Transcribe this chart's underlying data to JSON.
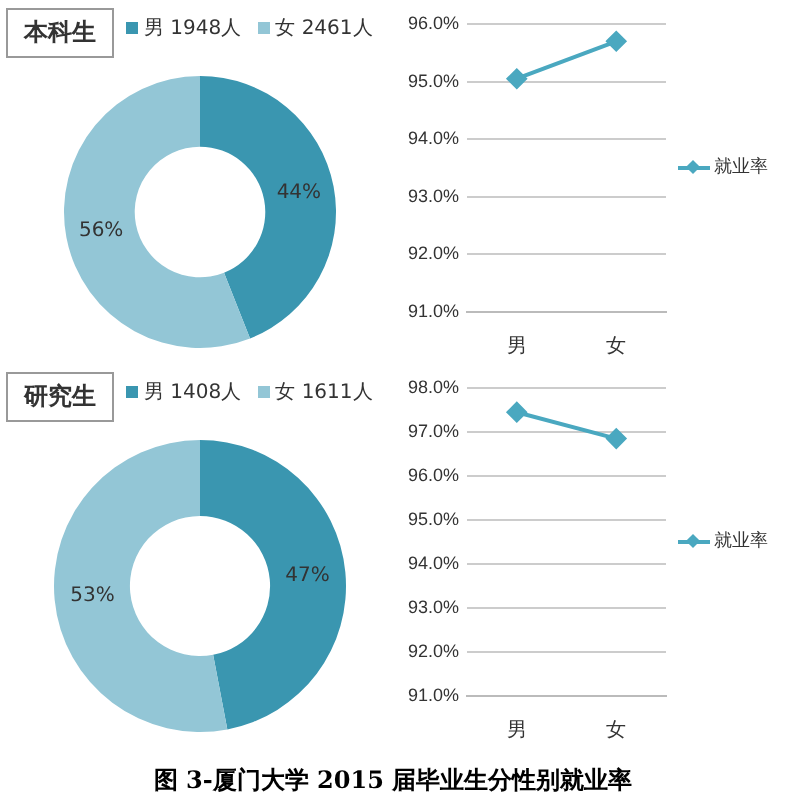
{
  "chart_data": [
    {
      "type": "donut",
      "title": "本科生",
      "categories": [
        "男 1948人",
        "女 2461人"
      ],
      "values": [
        44,
        56
      ],
      "colors": [
        "#3a96b0",
        "#93c6d6"
      ],
      "value_labels": [
        "44%",
        "56%"
      ],
      "legend": "top"
    },
    {
      "type": "line",
      "categories": [
        "男",
        "女"
      ],
      "series": [
        {
          "name": "就业率",
          "color": "#4aa8c0",
          "values": [
            95.05,
            95.7
          ]
        }
      ],
      "ylim": [
        91,
        96
      ],
      "yticks": [
        {
          "value": 91,
          "label": "91.0%"
        },
        {
          "value": 92,
          "label": "92.0%"
        },
        {
          "value": 93,
          "label": "93.0%"
        },
        {
          "value": 94,
          "label": "94.0%"
        },
        {
          "value": 95,
          "label": "95.0%"
        },
        {
          "value": 96,
          "label": "96.0%"
        }
      ],
      "grid": "y",
      "legend": "right",
      "marker": "diamond"
    },
    {
      "type": "donut",
      "title": "研究生",
      "categories": [
        "男 1408人",
        "女 1611人"
      ],
      "values": [
        47,
        53
      ],
      "colors": [
        "#3a96b0",
        "#93c6d6"
      ],
      "value_labels": [
        "47%",
        "53%"
      ],
      "legend": "top"
    },
    {
      "type": "line",
      "categories": [
        "男",
        "女"
      ],
      "series": [
        {
          "name": "就业率",
          "color": "#4aa8c0",
          "values": [
            97.45,
            96.85
          ]
        }
      ],
      "ylim": [
        91,
        98
      ],
      "yticks": [
        {
          "value": 91,
          "label": "91.0%"
        },
        {
          "value": 92,
          "label": "92.0%"
        },
        {
          "value": 93,
          "label": "93.0%"
        },
        {
          "value": 94,
          "label": "94.0%"
        },
        {
          "value": 95,
          "label": "95.0%"
        },
        {
          "value": 96,
          "label": "96.0%"
        },
        {
          "value": 97,
          "label": "97.0%"
        },
        {
          "value": 98,
          "label": "98.0%"
        }
      ],
      "grid": "y",
      "legend": "right",
      "marker": "diamond",
      "annotations": [
        "图 3-厦门大学 2015 届毕业生分性别就业率"
      ]
    }
  ]
}
